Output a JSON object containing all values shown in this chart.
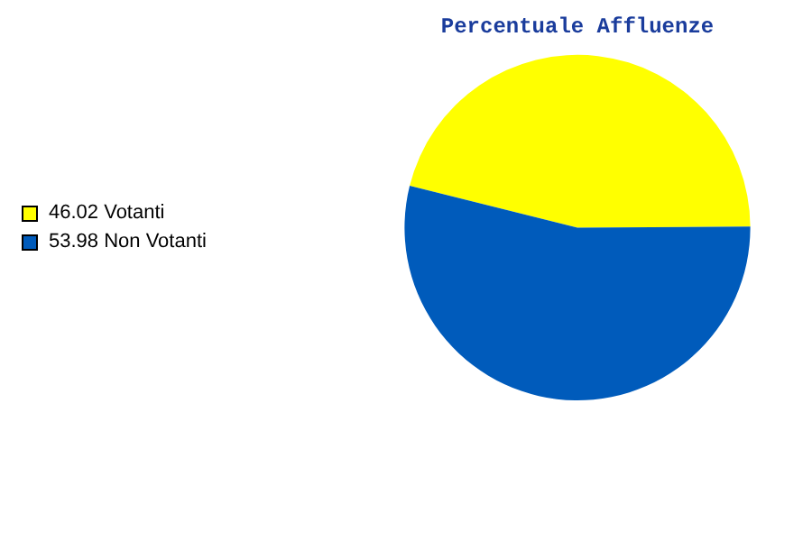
{
  "chart_data": {
    "type": "pie",
    "title": "Percentuale Affluenze",
    "categories": [
      "Votanti",
      "Non Votanti"
    ],
    "values": [
      46.02,
      53.98
    ],
    "value_labels": [
      "46.02",
      "53.98"
    ],
    "colors": [
      "#ffff00",
      "#005bbb"
    ],
    "legend": "left"
  }
}
